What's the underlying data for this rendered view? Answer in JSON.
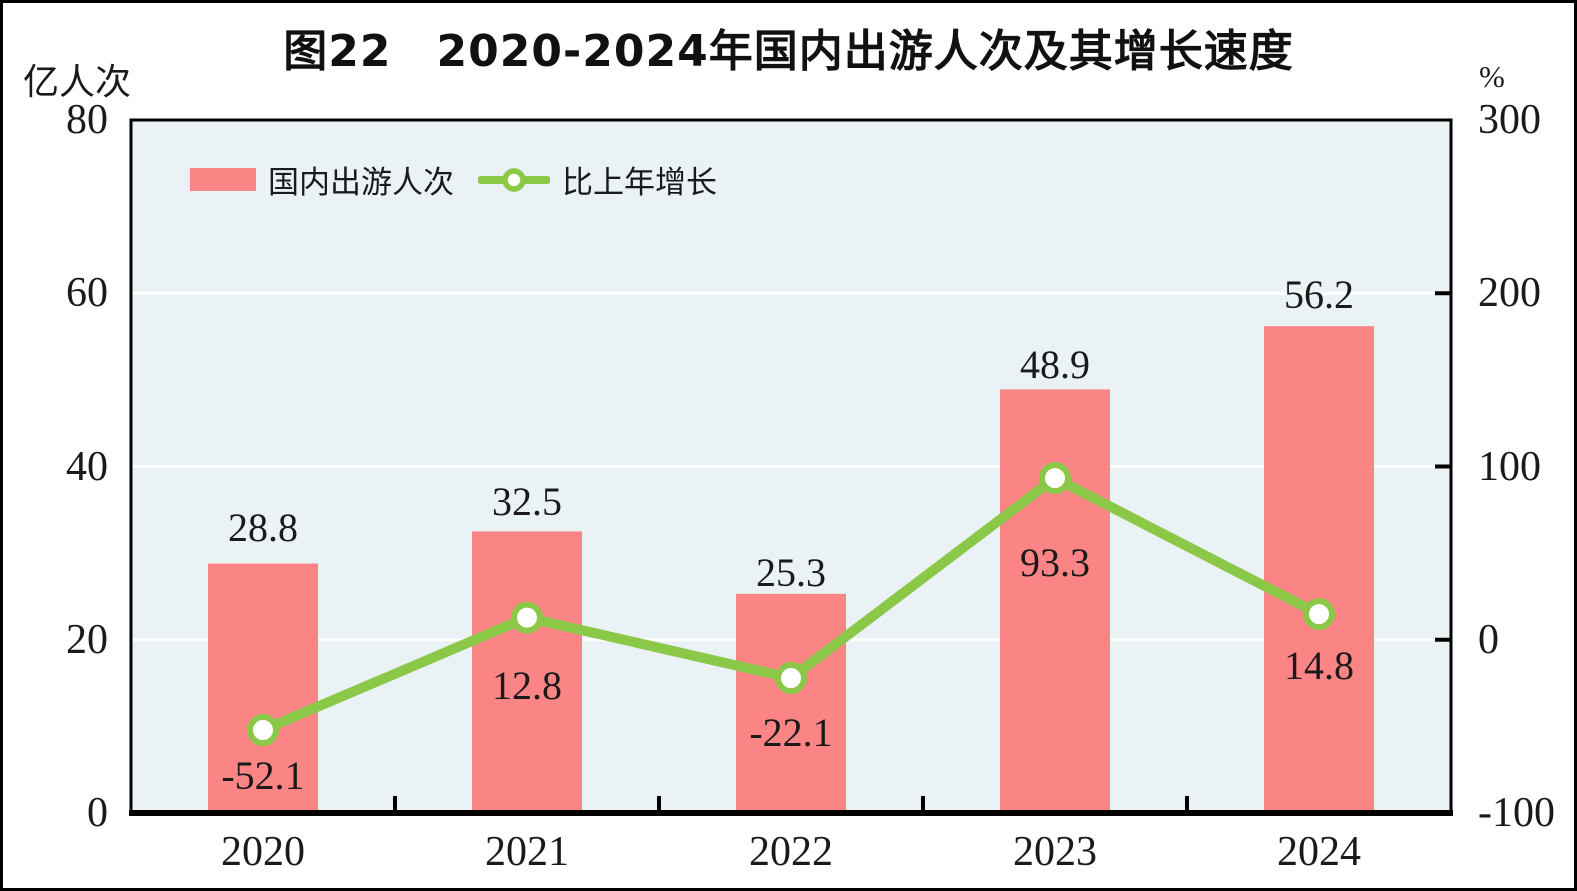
{
  "chart": {
    "title": "图22　2020-2024年国内出游人次及其增长速度",
    "legend": {
      "bar_label": "国内出游人次",
      "line_label": "比上年增长"
    }
  },
  "chart_data": {
    "type": "bar",
    "subtype": "bar+line-combo",
    "title": "图22　2020-2024年国内出游人次及其增长速度",
    "categories": [
      "2020",
      "2021",
      "2022",
      "2023",
      "2024"
    ],
    "series": [
      {
        "name": "国内出游人次",
        "type": "bar",
        "axis": "left",
        "unit": "亿人次",
        "values": [
          28.8,
          32.5,
          25.3,
          48.9,
          56.2
        ]
      },
      {
        "name": "比上年增长",
        "type": "line",
        "axis": "right",
        "unit": "%",
        "values": [
          -52.1,
          12.8,
          -22.1,
          93.3,
          14.8
        ]
      }
    ],
    "xlabel": "",
    "ylabel_left": "亿人次",
    "ylabel_right": "%",
    "left_ylim": [
      0,
      80
    ],
    "right_ylim": [
      -100,
      300
    ],
    "left_ticks": [
      0,
      20,
      40,
      60,
      80
    ],
    "right_ticks": [
      -100,
      0,
      100,
      200,
      300
    ],
    "grid": true,
    "legend_position": "top-left",
    "colors": {
      "bar": "#FB8585",
      "line": "#8CC847",
      "marker_fill": "#FFFFFF",
      "plot_bg": "#EAF2F5",
      "grid": "#FFFFFF",
      "text": "#1A1A1A",
      "frame": "#000000"
    }
  }
}
